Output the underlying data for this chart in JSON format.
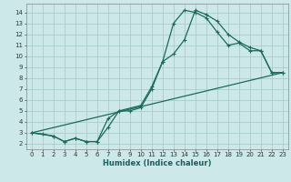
{
  "xlabel": "Humidex (Indice chaleur)",
  "bg_color": "#cce8e8",
  "grid_color": "#aacccc",
  "line_color": "#1a6b5a",
  "xlim": [
    -0.5,
    23.5
  ],
  "ylim": [
    1.5,
    14.8
  ],
  "xticks": [
    0,
    1,
    2,
    3,
    4,
    5,
    6,
    7,
    8,
    9,
    10,
    11,
    12,
    13,
    14,
    15,
    16,
    17,
    18,
    19,
    20,
    21,
    22,
    23
  ],
  "yticks": [
    2,
    3,
    4,
    5,
    6,
    7,
    8,
    9,
    10,
    11,
    12,
    13,
    14
  ],
  "curve1_x": [
    0,
    1,
    2,
    3,
    4,
    5,
    6,
    7,
    8,
    9,
    10,
    11,
    12,
    13,
    14,
    15,
    16,
    17,
    18,
    19,
    20,
    21,
    22,
    23
  ],
  "curve1_y": [
    3.0,
    2.9,
    2.7,
    2.2,
    2.5,
    2.2,
    2.2,
    4.3,
    5.0,
    5.0,
    5.3,
    7.0,
    9.5,
    10.2,
    11.5,
    14.2,
    13.8,
    13.2,
    12.0,
    11.3,
    10.8,
    10.5,
    8.5,
    8.5
  ],
  "curve2_x": [
    0,
    2,
    3,
    4,
    5,
    6,
    7,
    8,
    10,
    11,
    12,
    13,
    14,
    15,
    16,
    17,
    18,
    19,
    20,
    21,
    22,
    23
  ],
  "curve2_y": [
    3.0,
    2.7,
    2.2,
    2.5,
    2.2,
    2.2,
    3.5,
    5.0,
    5.5,
    7.2,
    9.5,
    13.0,
    14.2,
    14.0,
    13.5,
    12.2,
    11.0,
    11.2,
    10.5,
    10.5,
    8.5,
    8.5
  ],
  "curve3_x": [
    0,
    23
  ],
  "curve3_y": [
    3.0,
    8.5
  ]
}
